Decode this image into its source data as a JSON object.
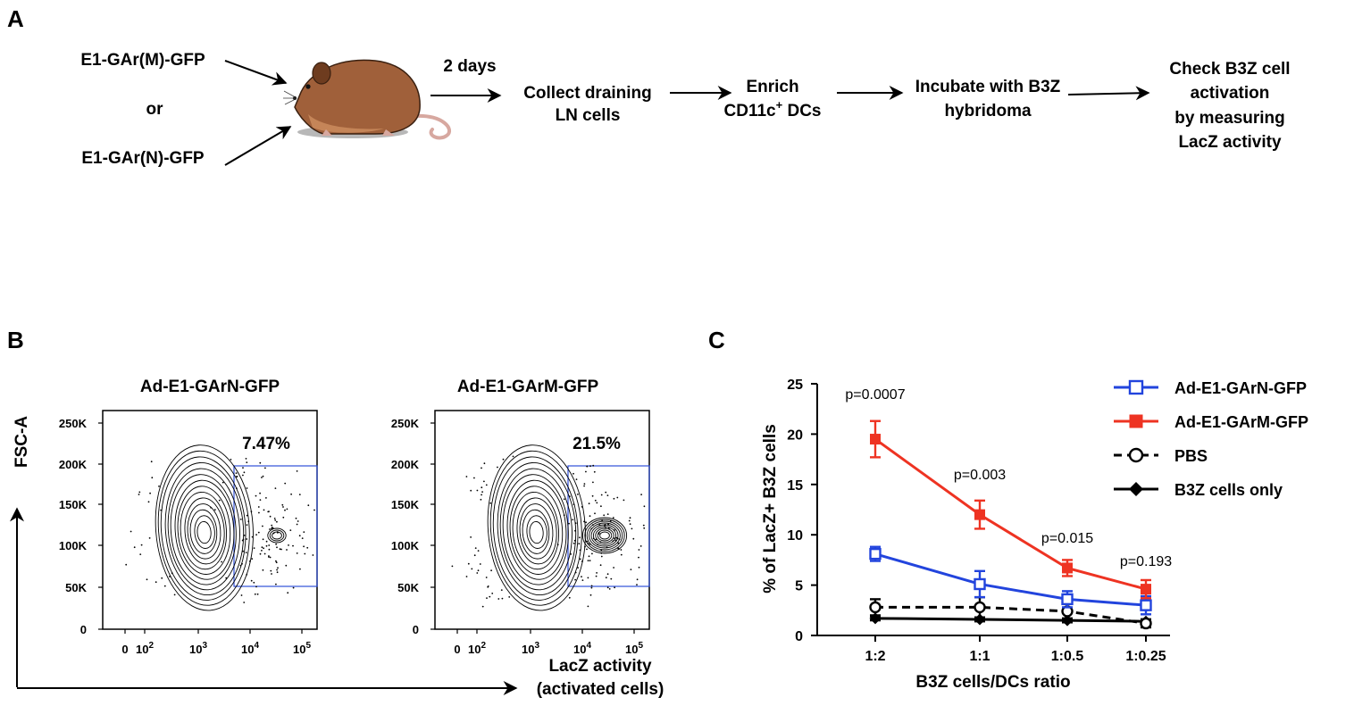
{
  "panels": {
    "a": "A",
    "b": "B",
    "c": "C"
  },
  "schematic": {
    "vector_top": "E1-GAr(M)-GFP",
    "or_word": "or",
    "vector_bottom": "E1-GAr(N)-GFP",
    "time_label": "2 days",
    "steps": [
      [
        "Collect draining",
        "LN cells"
      ],
      [
        "Enrich",
        "CD11c"
      ],
      [
        "Incubate with B3Z",
        "hybridoma"
      ],
      [
        "Check B3Z cell",
        "activation",
        "by measuring",
        "LacZ activity"
      ]
    ],
    "cd11c_sup": "+",
    "cd11c_rest": " DCs",
    "colors": {
      "fur": "#a0603a",
      "fur_dark": "#6e3c1f",
      "belly": "#c98a5c",
      "tail": "#d7a8a0"
    }
  },
  "flow_panel": {
    "y_title": "FSC-A",
    "x_title_line1": "LacZ activity",
    "x_title_line2": "(activated cells)",
    "y_ticks": [
      "250K",
      "200K",
      "150K",
      "100K",
      "50K",
      "0"
    ],
    "x_ticks": [
      "0",
      "10",
      "10",
      "10",
      "10"
    ],
    "x_tick_exps": [
      "",
      "2",
      "3",
      "4",
      "5"
    ],
    "plots": [
      {
        "title": "Ad-E1-GArN-GFP",
        "gate_pct": "7.47%",
        "gate_fraction": 0.0747
      },
      {
        "title": "Ad-E1-GArM-GFP",
        "gate_pct": "21.5%",
        "gate_fraction": 0.215
      }
    ],
    "gate_color": "#2f4fd8"
  },
  "chart_data": {
    "type": "line",
    "xlabel": "B3Z cells/DCs ratio",
    "ylabel": "% of LacZ+ B3Z cells",
    "ylim": [
      0,
      25
    ],
    "yticks": [
      0,
      5,
      10,
      15,
      20,
      25
    ],
    "categories": [
      "1:2",
      "1:1",
      "1:0.5",
      "1:0.25"
    ],
    "series": [
      {
        "name": "Ad-E1-GArN-GFP",
        "values": [
          8.1,
          5.1,
          3.6,
          3.0
        ],
        "errors": [
          0.7,
          1.3,
          0.8,
          0.9
        ],
        "color": "#2244dd",
        "marker": "open-square",
        "dashed": false
      },
      {
        "name": "Ad-E1-GArM-GFP",
        "values": [
          19.5,
          12.0,
          6.7,
          4.6
        ],
        "errors": [
          1.8,
          1.4,
          0.8,
          0.9
        ],
        "color": "#ee3322",
        "marker": "filled-square",
        "dashed": false
      },
      {
        "name": "PBS",
        "values": [
          2.8,
          2.8,
          2.4,
          1.2
        ],
        "errors": [
          0.8,
          1.0,
          0.9,
          0.4
        ],
        "color": "#000000",
        "marker": "open-circle",
        "dashed": true
      },
      {
        "name": "B3Z cells only",
        "values": [
          1.7,
          1.6,
          1.5,
          1.4
        ],
        "errors": [
          0.2,
          0.2,
          0.2,
          0.2
        ],
        "color": "#000000",
        "marker": "filled-diamond",
        "dashed": false
      }
    ],
    "annotations": [
      {
        "text": "p=0.0007",
        "category": "1:2",
        "y": 23.5
      },
      {
        "text": "p=0.003",
        "category": "1:1",
        "y": 15.5
      },
      {
        "text": "p=0.015",
        "category": "1:0.5",
        "y": 9.2
      },
      {
        "text": "p=0.193",
        "category": "1:0.25",
        "y": 6.9
      }
    ],
    "legend_position": "top-right"
  }
}
